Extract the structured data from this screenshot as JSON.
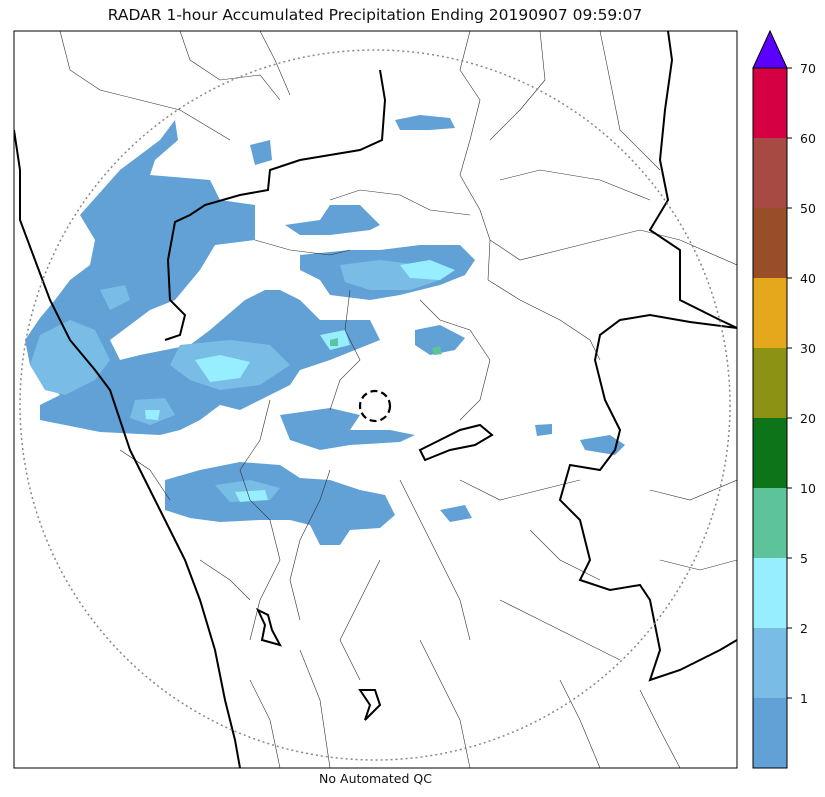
{
  "title": "RADAR 1-hour Accumulated Precipitation Ending 20190907 09:59:07",
  "footer": "No Automated QC",
  "colorbar": {
    "labels": [
      "70",
      "60",
      "50",
      "40",
      "30",
      "20",
      "10",
      "5",
      "2",
      "1"
    ],
    "colors": [
      "#d40043",
      "#a84a44",
      "#9a4e27",
      "#e5a81c",
      "#8b9214",
      "#0e7419",
      "#5cc39a",
      "#97eeff",
      "#79bde6",
      "#61a1d6"
    ],
    "overflow_color": "#5b00ff"
  },
  "map_colors": {
    "light": "#61a1d6",
    "mid": "#79bde6",
    "cyan": "#97eeff",
    "green": "#5cc39a"
  }
}
